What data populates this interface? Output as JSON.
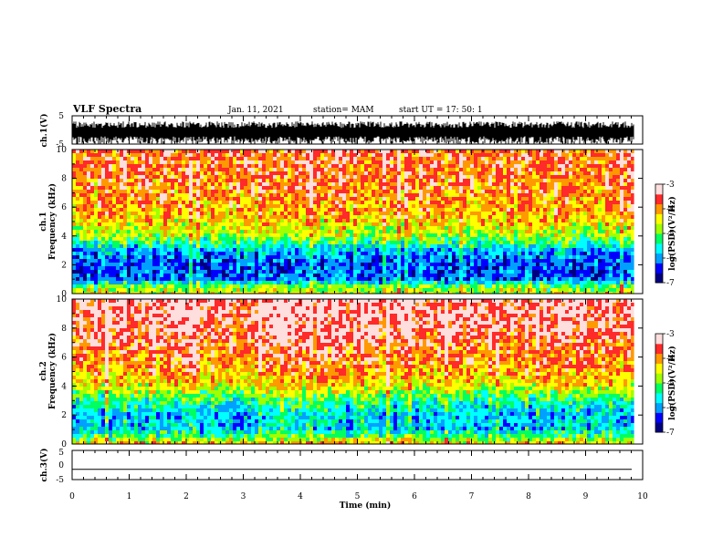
{
  "header": {
    "title": "VLF Spectra",
    "date": "Jan. 11, 2021",
    "station": "station= MAM",
    "start": "start  UT  =   17: 50: 1"
  },
  "colors": {
    "spectrum": [
      "#000080",
      "#0000ff",
      "#00a0ff",
      "#00ffff",
      "#00ff60",
      "#a0ff00",
      "#ffff00",
      "#ff9900",
      "#ff2a2a",
      "#ffdede"
    ],
    "trace": "#000000"
  },
  "chart_data": [
    {
      "type": "line",
      "panel": "ch1-waveform",
      "ylabel": "ch.1(V)",
      "ylim": [
        -5,
        5
      ],
      "yticks": [
        "5",
        "-5"
      ],
      "amplitude_range": [
        -5,
        3
      ],
      "x_end_min": 9.85
    },
    {
      "type": "heatmap",
      "panel": "ch1-spectrogram",
      "ylabel_channel": "ch.1",
      "ylabel": "Frequency (kHz)",
      "ylim": [
        0,
        10
      ],
      "yticks": [
        "0",
        "2",
        "4",
        "6",
        "8",
        "10"
      ],
      "x_end_min": 9.85,
      "colorbar": {
        "label": "log(PSD)(V²/Hz)",
        "range": [
          -7,
          -3
        ],
        "ticks": [
          "-3",
          "-4",
          "-5",
          "-6",
          "-7"
        ]
      },
      "profile": [
        {
          "f": 0.1,
          "v": -4.6
        },
        {
          "f": 0.5,
          "v": -5.0
        },
        {
          "f": 1.0,
          "v": -6.2
        },
        {
          "f": 2.0,
          "v": -6.3
        },
        {
          "f": 3.0,
          "v": -5.9
        },
        {
          "f": 3.5,
          "v": -5.3
        },
        {
          "f": 4.0,
          "v": -4.8
        },
        {
          "f": 5.0,
          "v": -4.3
        },
        {
          "f": 6.0,
          "v": -4.0
        },
        {
          "f": 8.0,
          "v": -3.8
        },
        {
          "f": 10.0,
          "v": -3.7
        }
      ]
    },
    {
      "type": "heatmap",
      "panel": "ch2-spectrogram",
      "ylabel_channel": "ch.2",
      "ylabel": "Frequency (kHz)",
      "ylim": [
        0,
        10
      ],
      "yticks": [
        "0",
        "2",
        "4",
        "6",
        "8",
        "10"
      ],
      "x_end_min": 9.85,
      "colorbar": {
        "label": "log(PSD)(V²/Hz)",
        "range": [
          -7,
          -3
        ],
        "ticks": [
          "-3",
          "-4",
          "-5",
          "-6",
          "-7"
        ]
      },
      "profile": [
        {
          "f": 0.1,
          "v": -4.3
        },
        {
          "f": 0.5,
          "v": -5.1
        },
        {
          "f": 1.0,
          "v": -5.7
        },
        {
          "f": 2.0,
          "v": -5.8
        },
        {
          "f": 3.0,
          "v": -5.3
        },
        {
          "f": 3.5,
          "v": -4.9
        },
        {
          "f": 4.0,
          "v": -4.4
        },
        {
          "f": 5.0,
          "v": -4.0
        },
        {
          "f": 6.0,
          "v": -3.8
        },
        {
          "f": 8.0,
          "v": -3.4
        },
        {
          "f": 10.0,
          "v": -3.3
        }
      ]
    },
    {
      "type": "line",
      "panel": "ch3-waveform",
      "ylabel": "ch.3(V)",
      "ylim": [
        -5,
        5
      ],
      "yticks": [
        "5",
        "0",
        "-5"
      ],
      "constant_value": -1.5,
      "x": {
        "label": "Time  (min)",
        "range": [
          0,
          10
        ],
        "ticks": [
          "0",
          "1",
          "2",
          "3",
          "4",
          "5",
          "6",
          "7",
          "8",
          "9",
          "10"
        ]
      }
    }
  ]
}
